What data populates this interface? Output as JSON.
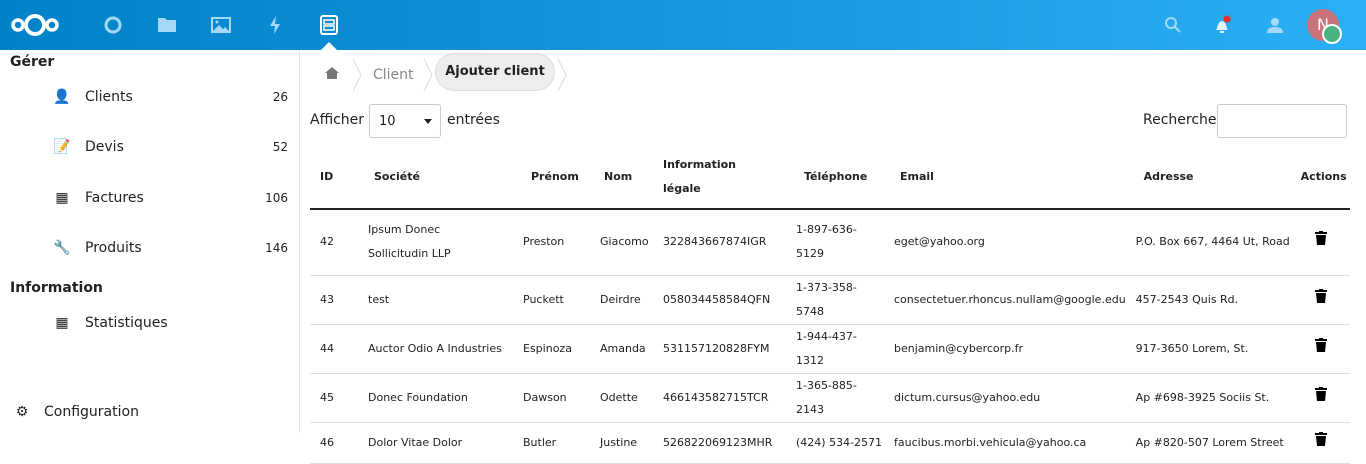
{
  "topbar": {
    "apps": [
      "logo",
      "dashboard",
      "files",
      "photos",
      "activity",
      "crm"
    ],
    "avatar_initial": "N",
    "colors": {
      "bar": "#0082c9",
      "avatar": "#c9747c",
      "status": "#49b382",
      "notification": "#e9322d"
    }
  },
  "sidebar": {
    "section1": "Gérer",
    "items": [
      {
        "label": "Clients",
        "count": "26",
        "icon": "user-icon"
      },
      {
        "label": "Devis",
        "count": "52",
        "icon": "quote-icon"
      },
      {
        "label": "Factures",
        "count": "106",
        "icon": "grid-icon"
      },
      {
        "label": "Produits",
        "count": "146",
        "icon": "wrench-icon"
      }
    ],
    "section2": "Information",
    "info_items": [
      {
        "label": "Statistiques",
        "icon": "grid-icon"
      }
    ],
    "settings": "Configuration"
  },
  "breadcrumb": {
    "items": [
      "Client",
      "Ajouter client"
    ]
  },
  "controls": {
    "show_label": "Afficher",
    "page_size": "10",
    "entries_label": "entrées",
    "search_label": "Recherche",
    "search_value": ""
  },
  "table": {
    "headers": [
      "ID",
      "Société",
      "Prénom",
      "Nom",
      "Information légale",
      "Téléphone",
      "Email",
      "Adresse",
      "Actions"
    ],
    "rows": [
      [
        "42",
        "Ipsum Donec Sollicitudin LLP",
        "Preston",
        "Giacomo",
        "322843667874IGR",
        "1-897-636-5129",
        "eget@yahoo.org",
        "P.O. Box 667, 4464 Ut, Road"
      ],
      [
        "43",
        "test",
        "Puckett",
        "Deirdre",
        "058034458584QFN",
        "1-373-358-5748",
        "consectetuer.rhoncus.nullam@google.edu",
        "457-2543 Quis Rd."
      ],
      [
        "44",
        "Auctor Odio A Industries",
        "Espinoza",
        "Amanda",
        "531157120828FYM",
        "1-944-437-1312",
        "benjamin@cybercorp.fr",
        "917-3650 Lorem, St."
      ],
      [
        "45",
        "Donec Foundation",
        "Dawson",
        "Odette",
        "466143582715TCR",
        "1-365-885-2143",
        "dictum.cursus@yahoo.edu",
        "Ap #698-3925 Sociis St."
      ],
      [
        "46",
        "Dolor Vitae Dolor",
        "Butler",
        "Justine",
        "526822069123MHR",
        "(424) 534-2571",
        "faucibus.morbi.vehicula@yahoo.ca",
        "Ap #820-507 Lorem Street"
      ]
    ]
  }
}
